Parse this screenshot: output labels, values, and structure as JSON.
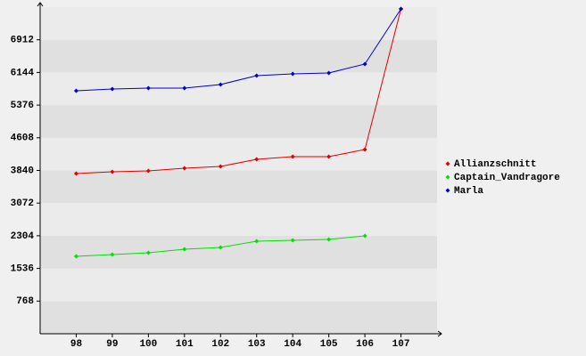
{
  "chart_data": {
    "type": "line",
    "x": [
      98,
      99,
      100,
      101,
      102,
      103,
      104,
      105,
      106,
      107
    ],
    "xlim": [
      97,
      108
    ],
    "xticks": [
      98,
      99,
      100,
      101,
      102,
      103,
      104,
      105,
      106,
      107
    ],
    "ylim": [
      0,
      7680
    ],
    "yticks": [
      768,
      1536,
      2304,
      3072,
      3840,
      4608,
      5376,
      6144,
      6912
    ],
    "grid": true,
    "legend": "right",
    "series": [
      {
        "name": "Allianzschnitt",
        "color": "#e00000",
        "values": [
          3767,
          3808,
          3829,
          3892,
          3934,
          4101,
          4164,
          4164,
          4332,
          7638
        ]
      },
      {
        "name": "Captain_Vandragore",
        "color": "#00e000",
        "values": [
          1821,
          1862,
          1904,
          1988,
          2030,
          2176,
          2197,
          2218,
          2302,
          null
        ]
      },
      {
        "name": "Marla",
        "color": "#0000cc",
        "values": [
          5713,
          5755,
          5776,
          5776,
          5860,
          6069,
          6111,
          6132,
          6341,
          7638
        ]
      }
    ]
  }
}
